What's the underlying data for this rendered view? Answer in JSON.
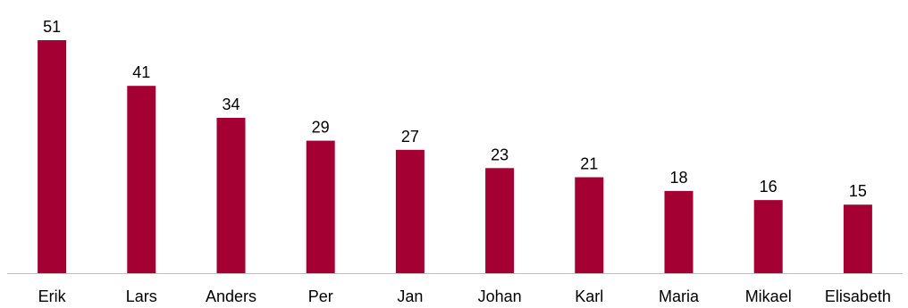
{
  "chart_data": {
    "type": "bar",
    "categories": [
      "Erik",
      "Lars",
      "Anders",
      "Per",
      "Jan",
      "Johan",
      "Karl",
      "Maria",
      "Mikael",
      "Elisabeth"
    ],
    "values": [
      51,
      41,
      34,
      29,
      27,
      23,
      21,
      18,
      16,
      15
    ],
    "title": "",
    "xlabel": "",
    "ylabel": "",
    "ylim": [
      0,
      51
    ],
    "grid": false,
    "bar_color": "#A50034",
    "axis_color": "#BFBFBF"
  }
}
